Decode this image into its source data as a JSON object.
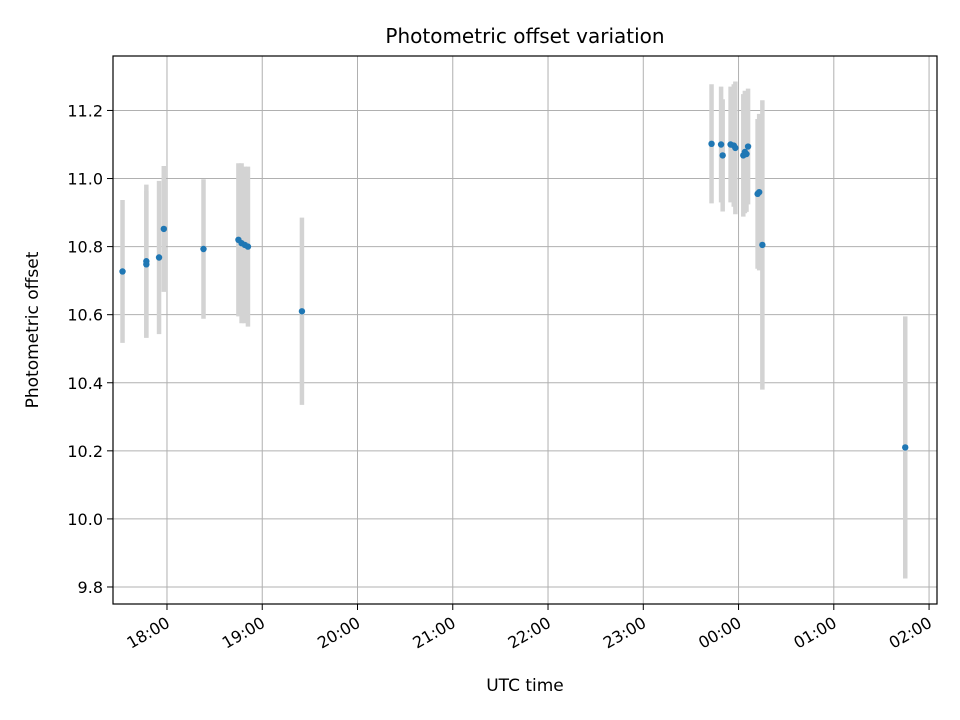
{
  "chart_data": {
    "type": "scatter",
    "title": "Photometric offset variation",
    "xlabel": "UTC time",
    "ylabel": "Photometric offset",
    "x_ticks": [
      "18:00",
      "19:00",
      "20:00",
      "21:00",
      "22:00",
      "23:00",
      "00:00",
      "01:00",
      "02:00"
    ],
    "y_ticks": [
      "9.8",
      "10.0",
      "10.2",
      "10.4",
      "10.6",
      "10.8",
      "11.0",
      "11.2"
    ],
    "xlim": [
      "17:26",
      "02:05"
    ],
    "ylim": [
      9.75,
      11.36
    ],
    "grid": true,
    "colors": {
      "points": "#1f77b4",
      "errorbars": "#d3d3d3",
      "grid": "#b0b0b0"
    },
    "points": [
      {
        "x": "17:32",
        "y": 10.727,
        "err": 0.21
      },
      {
        "x": "17:47",
        "y": 10.757,
        "err": 0.225
      },
      {
        "x": "17:47",
        "y": 10.748,
        "err": 0.215
      },
      {
        "x": "17:55",
        "y": 10.768,
        "err": 0.225
      },
      {
        "x": "17:58",
        "y": 10.852,
        "err": 0.185
      },
      {
        "x": "18:23",
        "y": 10.793,
        "err": 0.205
      },
      {
        "x": "18:45",
        "y": 10.82,
        "err": 0.225
      },
      {
        "x": "18:47",
        "y": 10.81,
        "err": 0.235
      },
      {
        "x": "18:49",
        "y": 10.805,
        "err": 0.23
      },
      {
        "x": "18:51",
        "y": 10.8,
        "err": 0.235
      },
      {
        "x": "19:25",
        "y": 10.61,
        "err": 0.275
      },
      {
        "x": "23:43",
        "y": 11.102,
        "err": 0.175
      },
      {
        "x": "23:49",
        "y": 11.1,
        "err": 0.17
      },
      {
        "x": "23:50",
        "y": 11.068,
        "err": 0.165
      },
      {
        "x": "23:55",
        "y": 11.1,
        "err": 0.17
      },
      {
        "x": "23:57",
        "y": 11.097,
        "err": 0.18
      },
      {
        "x": "23:58",
        "y": 11.09,
        "err": 0.195
      },
      {
        "x": "00:03",
        "y": 11.068,
        "err": 0.18
      },
      {
        "x": "00:04",
        "y": 11.078,
        "err": 0.18
      },
      {
        "x": "00:05",
        "y": 11.072,
        "err": 0.17
      },
      {
        "x": "00:06",
        "y": 11.094,
        "err": 0.17
      },
      {
        "x": "00:12",
        "y": 10.955,
        "err": 0.22
      },
      {
        "x": "00:13",
        "y": 10.96,
        "err": 0.23
      },
      {
        "x": "00:15",
        "y": 10.805,
        "err": 0.425
      },
      {
        "x": "01:45",
        "y": 10.21,
        "err": 0.385
      }
    ]
  }
}
